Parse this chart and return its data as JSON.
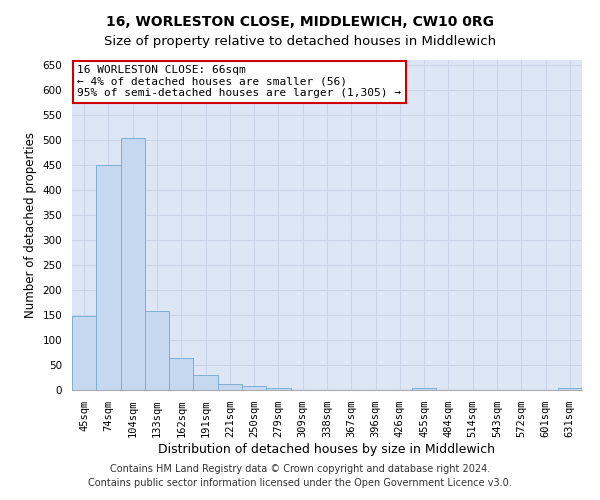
{
  "title": "16, WORLESTON CLOSE, MIDDLEWICH, CW10 0RG",
  "subtitle": "Size of property relative to detached houses in Middlewich",
  "xlabel": "Distribution of detached houses by size in Middlewich",
  "ylabel": "Number of detached properties",
  "categories": [
    "45sqm",
    "74sqm",
    "104sqm",
    "133sqm",
    "162sqm",
    "191sqm",
    "221sqm",
    "250sqm",
    "279sqm",
    "309sqm",
    "338sqm",
    "367sqm",
    "396sqm",
    "426sqm",
    "455sqm",
    "484sqm",
    "514sqm",
    "543sqm",
    "572sqm",
    "601sqm",
    "631sqm"
  ],
  "values": [
    148,
    450,
    505,
    158,
    65,
    30,
    13,
    8,
    5,
    0,
    0,
    0,
    0,
    0,
    5,
    0,
    0,
    0,
    0,
    0,
    5
  ],
  "bar_color": "#c5d8f0",
  "bar_edge_color": "#7bafd4",
  "annotation_line1": "16 WORLESTON CLOSE: 66sqm",
  "annotation_line2": "← 4% of detached houses are smaller (56)",
  "annotation_line3": "95% of semi-detached houses are larger (1,305) →",
  "annotation_box_color": "#ffffff",
  "annotation_box_edge_color": "#cc0000",
  "ylim": [
    0,
    660
  ],
  "yticks": [
    0,
    50,
    100,
    150,
    200,
    250,
    300,
    350,
    400,
    450,
    500,
    550,
    600,
    650
  ],
  "grid_color": "#c8d4e8",
  "plot_background_color": "#dde6f5",
  "fig_background_color": "#ffffff",
  "footer_line1": "Contains HM Land Registry data © Crown copyright and database right 2024.",
  "footer_line2": "Contains public sector information licensed under the Open Government Licence v3.0.",
  "title_fontsize": 10,
  "subtitle_fontsize": 9.5,
  "xlabel_fontsize": 9,
  "ylabel_fontsize": 8.5,
  "tick_fontsize": 7.5,
  "annotation_fontsize": 8,
  "footer_fontsize": 7
}
